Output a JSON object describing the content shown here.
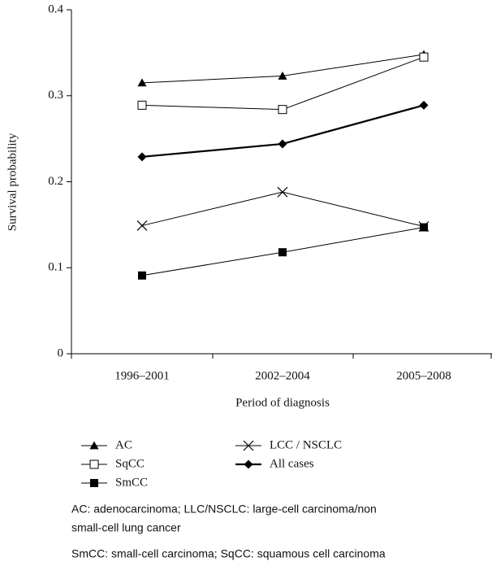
{
  "chart_data": {
    "type": "line",
    "xlabel": "Period of diagnosis",
    "ylabel": "Survival probability",
    "categories": [
      "1996–2001",
      "2002–2004",
      "2005–2008"
    ],
    "ylim": [
      0,
      0.4
    ],
    "yticks": [
      0,
      0.1,
      0.2,
      0.3,
      0.4
    ],
    "series": [
      {
        "name": "AC",
        "color": "#000000",
        "marker": "triangle",
        "line_width": 1,
        "values": [
          0.315,
          0.323,
          0.348
        ]
      },
      {
        "name": "SqCC",
        "color": "#000000",
        "marker": "open-square",
        "line_width": 1,
        "values": [
          0.289,
          0.284,
          0.345
        ]
      },
      {
        "name": "SmCC",
        "color": "#000000",
        "marker": "square",
        "line_width": 1,
        "values": [
          0.091,
          0.118,
          0.147
        ]
      },
      {
        "name": "LCC / NSCLC",
        "color": "#000000",
        "marker": "x",
        "line_width": 1,
        "values": [
          0.149,
          0.188,
          0.148
        ]
      },
      {
        "name": "All cases",
        "color": "#000000",
        "marker": "diamond",
        "line_width": 2.2,
        "values": [
          0.229,
          0.244,
          0.289
        ]
      }
    ],
    "notes": [
      "AC: adenocarcinoma; LLC/NSCLC: large-cell carcinoma/non",
      "small-cell lung cancer",
      "SmCC: small-cell carcinoma; SqCC: squamous cell carcinoma"
    ]
  }
}
